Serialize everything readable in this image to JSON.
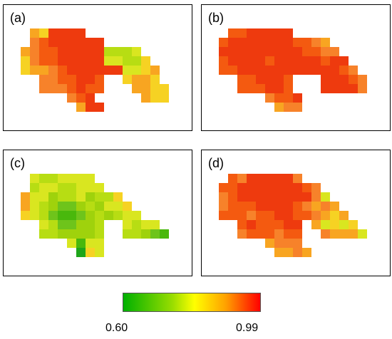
{
  "panels": [
    {
      "label": "(a)",
      "rows": [
        "...DEAAAA..............",
        "...CBAAAAAA............",
        "..DCBBAAAAAGGGF........",
        "..ECBBAAAAAFFGGE.......",
        "..EDDCBAAAAAAFFED......",
        "....CCBBAAB..EDDE......",
        "....CCCBABB...DDEE.....",
        ".......CBA.....DEE.....",
        "........DAA............"
      ]
    },
    {
      "label": "(b)",
      "rows": [
        "...BBAAAAA.............",
        "..BAAAAAAABBCD.........",
        "..AAAAAAAAABBCC........",
        "..BAAAABAAAAABAA.......",
        "..BBAAAAAAAAAAABC......",
        "....BBAAAB...AAABC.....",
        "....BBBAAB...AAAAC.....",
        ".......CBBA............",
        "........DCC............"
      ]
    },
    {
      "label": "(c)",
      "rows": [
        "...FGGFFFF.............",
        "...GFFGGFFF............",
        "..DFFHGGFHGGE..........",
        "..DFGHIIHGHFFE.........",
        "..EFGIJJIHGHGFF........",
        "....FGIIHHG..FGFF......",
        "....GGHHHHG..GGHIJ.....",
        ".......FJFF............",
        "........KEF............"
      ]
    },
    {
      "label": "(d)",
      "rows": [
        "...BCAAAAAC............",
        "..BBAAAAAAABC..........",
        "..CBAAAAAAAACF.........",
        "..CBBBAAAABCDCD........",
        "..BBBCBBAABBCDED.......",
        "....BABBBAA.DFEFE......",
        "....CBBBCBB..CDDDF.....",
        ".......DCCC.............",
        "........DDCD..........."
      ]
    }
  ],
  "palette": {
    "A": "#ee3a0e",
    "B": "#f45a10",
    "C": "#f7822a",
    "D": "#f8a521",
    "E": "#f6d223",
    "F": "#d9e620",
    "G": "#b7dd13",
    "H": "#9fd20c",
    "I": "#6ec41b",
    "J": "#49b80c",
    "K": "#1fa51a"
  },
  "legend": {
    "min_label": "0.60",
    "max_label": "0.99"
  }
}
